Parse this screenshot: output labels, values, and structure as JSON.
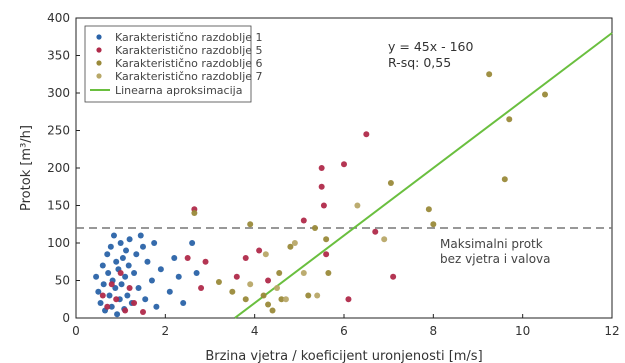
{
  "chart_data": {
    "type": "scatter",
    "xlabel": "Brzina vjetra / koeficijent uronjenosti [m/s]",
    "ylabel": "Protok [m³/h]",
    "xlim": [
      0,
      12
    ],
    "ylim": [
      0,
      400
    ],
    "xticks": [
      "0",
      "2",
      "4",
      "6",
      "8",
      "10",
      "12"
    ],
    "yticks": [
      "0",
      "50",
      "100",
      "150",
      "200",
      "250",
      "300",
      "350",
      "400"
    ],
    "grid": false,
    "legend_position": "top-left",
    "colors": {
      "series1": "#2a63a8",
      "series2": "#b02a4a",
      "series3": "#9a8a3a",
      "series4": "#b8a868",
      "fit": "#6abf3f",
      "threshold": "#777777"
    },
    "series": [
      {
        "name": "Karakteristično razdoblje 1",
        "points": [
          [
            0.45,
            55
          ],
          [
            0.5,
            35
          ],
          [
            0.55,
            20
          ],
          [
            0.6,
            70
          ],
          [
            0.62,
            45
          ],
          [
            0.65,
            10
          ],
          [
            0.7,
            85
          ],
          [
            0.72,
            60
          ],
          [
            0.75,
            30
          ],
          [
            0.78,
            95
          ],
          [
            0.8,
            15
          ],
          [
            0.82,
            50
          ],
          [
            0.85,
            110
          ],
          [
            0.88,
            40
          ],
          [
            0.9,
            75
          ],
          [
            0.92,
            5
          ],
          [
            0.95,
            65
          ],
          [
            0.98,
            25
          ],
          [
            1.0,
            100
          ],
          [
            1.02,
            45
          ],
          [
            1.05,
            80
          ],
          [
            1.08,
            12
          ],
          [
            1.1,
            55
          ],
          [
            1.12,
            90
          ],
          [
            1.15,
            30
          ],
          [
            1.18,
            70
          ],
          [
            1.2,
            105
          ],
          [
            1.25,
            20
          ],
          [
            1.3,
            60
          ],
          [
            1.35,
            85
          ],
          [
            1.4,
            40
          ],
          [
            1.45,
            110
          ],
          [
            1.5,
            95
          ],
          [
            1.55,
            25
          ],
          [
            1.6,
            75
          ],
          [
            1.7,
            50
          ],
          [
            1.75,
            100
          ],
          [
            1.8,
            15
          ],
          [
            1.9,
            65
          ],
          [
            2.1,
            35
          ],
          [
            2.2,
            80
          ],
          [
            2.3,
            55
          ],
          [
            2.4,
            20
          ],
          [
            2.6,
            100
          ],
          [
            2.7,
            60
          ]
        ]
      },
      {
        "name": "Karakteristično razdoblje 5",
        "points": [
          [
            0.6,
            30
          ],
          [
            0.7,
            15
          ],
          [
            0.8,
            45
          ],
          [
            0.9,
            25
          ],
          [
            1.0,
            60
          ],
          [
            1.1,
            10
          ],
          [
            1.2,
            40
          ],
          [
            1.3,
            20
          ],
          [
            1.5,
            8
          ],
          [
            2.5,
            80
          ],
          [
            2.65,
            145
          ],
          [
            2.8,
            40
          ],
          [
            2.9,
            75
          ],
          [
            3.6,
            55
          ],
          [
            3.8,
            80
          ],
          [
            4.1,
            90
          ],
          [
            4.3,
            50
          ],
          [
            5.1,
            130
          ],
          [
            5.5,
            200
          ],
          [
            5.5,
            175
          ],
          [
            5.55,
            150
          ],
          [
            5.6,
            85
          ],
          [
            6.0,
            205
          ],
          [
            6.1,
            25
          ],
          [
            6.5,
            245
          ],
          [
            6.7,
            115
          ],
          [
            7.1,
            55
          ]
        ]
      },
      {
        "name": "Karakteristično razdoblje 6",
        "points": [
          [
            2.65,
            140
          ],
          [
            3.2,
            48
          ],
          [
            3.5,
            35
          ],
          [
            3.8,
            25
          ],
          [
            3.9,
            125
          ],
          [
            4.2,
            30
          ],
          [
            4.3,
            18
          ],
          [
            4.4,
            10
          ],
          [
            4.55,
            60
          ],
          [
            4.6,
            25
          ],
          [
            4.8,
            95
          ],
          [
            5.2,
            30
          ],
          [
            5.35,
            120
          ],
          [
            5.6,
            105
          ],
          [
            5.65,
            60
          ],
          [
            7.05,
            180
          ],
          [
            7.9,
            145
          ],
          [
            8.0,
            125
          ],
          [
            9.25,
            325
          ],
          [
            9.6,
            185
          ],
          [
            9.7,
            265
          ],
          [
            10.5,
            298
          ]
        ]
      },
      {
        "name": "Karakteristično razdoblje 7",
        "points": [
          [
            3.9,
            45
          ],
          [
            4.25,
            85
          ],
          [
            4.5,
            40
          ],
          [
            4.7,
            25
          ],
          [
            4.9,
            100
          ],
          [
            5.1,
            60
          ],
          [
            5.4,
            30
          ],
          [
            6.3,
            150
          ],
          [
            6.9,
            105
          ]
        ]
      }
    ],
    "fit": {
      "name": "Linearna aproksimacija",
      "equation": "y = 45x - 160",
      "rsq": "R-sq: 0,55",
      "x_range": [
        3.56,
        12
      ]
    },
    "threshold": {
      "y": 120,
      "label_line1": "Maksimalni protk",
      "label_line2": "bez vjetra i valova"
    }
  }
}
